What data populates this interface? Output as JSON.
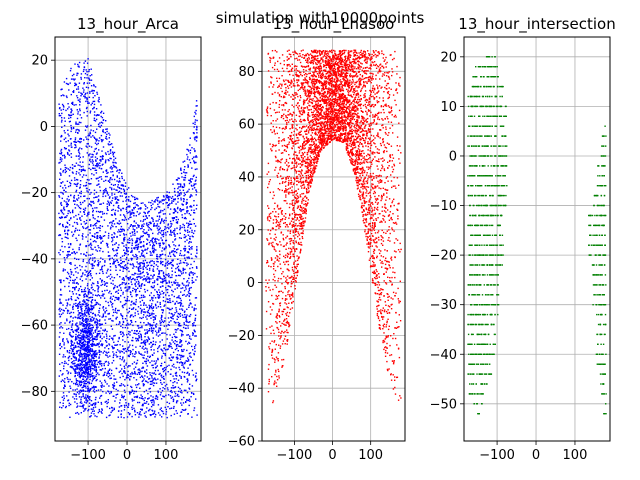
{
  "figure": {
    "suptitle": "simulation with10000points"
  },
  "chart_data": [
    {
      "type": "scatter",
      "title": "13_hour_Arca",
      "xlabel": "",
      "ylabel": "",
      "xlim": [
        -185,
        190
      ],
      "ylim": [
        -95,
        27
      ],
      "xticks": [
        -100,
        0,
        100
      ],
      "yticks": [
        -80,
        -60,
        -40,
        -20,
        0,
        20
      ],
      "grid": true,
      "color": "#0000ff",
      "point_count_estimate": 10000,
      "region": {
        "x_range": [
          -175,
          180
        ],
        "lower_bound": -88,
        "upper_envelope": [
          [
            -175,
            10
          ],
          [
            -150,
            17
          ],
          [
            -125,
            20
          ],
          [
            -100,
            21
          ],
          [
            -80,
            12
          ],
          [
            -50,
            0
          ],
          [
            -20,
            -12
          ],
          [
            10,
            -20
          ],
          [
            40,
            -23
          ],
          [
            70,
            -22
          ],
          [
            100,
            -20
          ],
          [
            130,
            -15
          ],
          [
            160,
            -5
          ],
          [
            180,
            9
          ]
        ],
        "dense_cluster": {
          "x": -105,
          "y": -68
        }
      }
    },
    {
      "type": "scatter",
      "title": "13_hour_Lhasoo",
      "xlabel": "",
      "ylabel": "",
      "xlim": [
        -185,
        190
      ],
      "ylim": [
        -60,
        93
      ],
      "xticks": [
        -100,
        0,
        100
      ],
      "yticks": [
        -60,
        -40,
        -20,
        0,
        20,
        40,
        60,
        80
      ],
      "grid": true,
      "color": "#ff0000",
      "point_count_estimate": 10000,
      "region": {
        "x_range": [
          -175,
          180
        ],
        "upper_bound": 88,
        "lower_envelope": [
          [
            -175,
            -50
          ],
          [
            -150,
            -45
          ],
          [
            -120,
            -25
          ],
          [
            -90,
            5
          ],
          [
            -60,
            35
          ],
          [
            -30,
            50
          ],
          [
            0,
            54
          ],
          [
            30,
            53
          ],
          [
            60,
            40
          ],
          [
            90,
            15
          ],
          [
            120,
            -15
          ],
          [
            150,
            -38
          ],
          [
            180,
            -52
          ]
        ]
      }
    },
    {
      "type": "scatter",
      "title": "13_hour_intersection",
      "xlabel": "",
      "ylabel": "",
      "xlim": [
        -185,
        190
      ],
      "ylim": [
        -57.5,
        24
      ],
      "xticks": [
        -100,
        0,
        100
      ],
      "yticks": [
        -50,
        -40,
        -30,
        -20,
        -10,
        0,
        10,
        20
      ],
      "grid": true,
      "color": "#008000",
      "bands": [
        {
          "x_range": [
            -175,
            -75
          ],
          "columns": [
            {
              "x": -170,
              "y": [
                -48,
                12
              ]
            },
            {
              "x": -160,
              "y": [
                -51,
                16
              ]
            },
            {
              "x": -150,
              "y": [
                -53,
                18
              ]
            },
            {
              "x": -140,
              "y": [
                -50,
                19
              ]
            },
            {
              "x": -130,
              "y": [
                -47,
                20
              ]
            },
            {
              "x": -120,
              "y": [
                -44,
                20
              ]
            },
            {
              "x": -110,
              "y": [
                -40,
                20
              ]
            },
            {
              "x": -100,
              "y": [
                -32,
                18
              ]
            },
            {
              "x": -90,
              "y": [
                -22,
                14
              ]
            },
            {
              "x": -80,
              "y": [
                -10,
                10
              ]
            }
          ]
        },
        {
          "x_range": [
            135,
            180
          ],
          "columns": [
            {
              "x": 140,
              "y": [
                -20,
                -12
              ]
            },
            {
              "x": 150,
              "y": [
                -30,
                -8
              ]
            },
            {
              "x": 160,
              "y": [
                -42,
                -2
              ]
            },
            {
              "x": 170,
              "y": [
                -48,
                4
              ]
            },
            {
              "x": 178,
              "y": [
                -52,
                8
              ]
            }
          ]
        }
      ]
    }
  ]
}
